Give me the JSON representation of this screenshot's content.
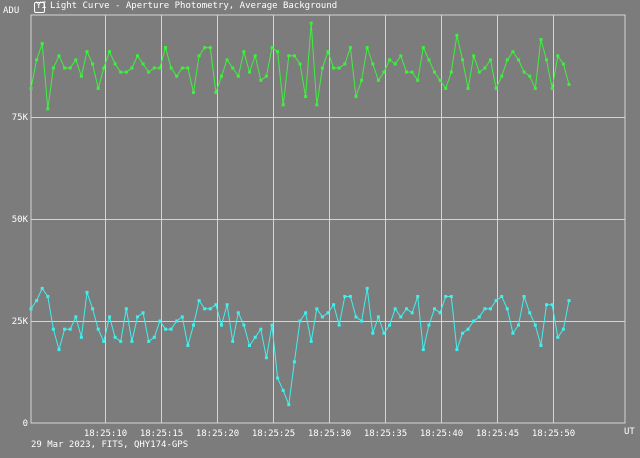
{
  "window": {
    "icon": "app-window-icon",
    "icon_glyph": "YI",
    "title": "Light Curve - Aperture Photometry, Average Background"
  },
  "footer": {
    "caption": "29 Mar 2023, FITS, QHY174-GPS"
  },
  "colors": {
    "background": "#7c7c7c",
    "grid": "#d4d4d4",
    "text": "#ffffff",
    "series_green": "#3ef03e",
    "series_cyan": "#3ff0ee"
  },
  "chart_data": {
    "type": "line",
    "ylabel": "ADU",
    "xlabel": "UT",
    "yticks": [
      {
        "value": 0,
        "label": "0"
      },
      {
        "value": 25000,
        "label": "25K"
      },
      {
        "value": 50000,
        "label": "50K"
      },
      {
        "value": 75000,
        "label": "75K"
      }
    ],
    "xticks": [
      "18:25:10",
      "18:25:15",
      "18:25:20",
      "18:25:25",
      "18:25:30",
      "18:25:35",
      "18:25:40",
      "18:25:45",
      "18:25:50"
    ],
    "xtick_seconds": [
      10,
      15,
      20,
      25,
      30,
      35,
      40,
      45,
      50
    ],
    "xlim": [
      3.4,
      56.4
    ],
    "ylim": [
      0,
      100000
    ],
    "grid": true,
    "x_step": 0.5,
    "series": [
      {
        "color": "#3ef03e",
        "x_start": 3.4,
        "values": [
          82000,
          89000,
          93000,
          77000,
          87000,
          90000,
          87000,
          87000,
          89000,
          85000,
          91000,
          88000,
          82000,
          87000,
          91000,
          88000,
          86000,
          86000,
          87000,
          90000,
          88000,
          86000,
          87000,
          87000,
          92000,
          87000,
          85000,
          87000,
          87000,
          81000,
          90000,
          92000,
          92000,
          81000,
          85000,
          89000,
          87000,
          85000,
          91000,
          86000,
          90000,
          84000,
          85000,
          92000,
          91000,
          78000,
          90000,
          90000,
          88000,
          80000,
          98000,
          78000,
          87000,
          91000,
          87000,
          87000,
          88000,
          92000,
          80000,
          84000,
          92000,
          88000,
          84000,
          86000,
          89000,
          88000,
          90000,
          86000,
          86000,
          84000,
          92000,
          89000,
          86000,
          84000,
          82000,
          86000,
          95000,
          89000,
          82000,
          90000,
          86000,
          87000,
          89000,
          82000,
          85000,
          89000,
          91000,
          89000,
          86000,
          85000,
          82000,
          94000,
          89000,
          82000,
          90000,
          88000,
          83000
        ]
      },
      {
        "color": "#3ff0ee",
        "x_start": 3.4,
        "values": [
          28000,
          30000,
          33000,
          31000,
          23000,
          18000,
          23000,
          23000,
          26000,
          21000,
          32000,
          28000,
          23000,
          20000,
          26000,
          21000,
          20000,
          28000,
          20000,
          26000,
          27000,
          20000,
          21000,
          25000,
          23000,
          23000,
          25000,
          26000,
          19000,
          24000,
          30000,
          28000,
          28000,
          29000,
          24000,
          29000,
          20000,
          27000,
          24000,
          19000,
          21000,
          23000,
          16000,
          24000,
          11000,
          8000,
          4500,
          15000,
          25000,
          27000,
          20000,
          28000,
          26000,
          27000,
          29000,
          24000,
          31000,
          31000,
          26000,
          25000,
          33000,
          22000,
          26000,
          22000,
          24000,
          28000,
          26000,
          28000,
          27000,
          31000,
          18000,
          24000,
          28000,
          27000,
          31000,
          31000,
          18000,
          22000,
          23000,
          25000,
          26000,
          28000,
          28000,
          30000,
          31000,
          28000,
          22000,
          24000,
          31000,
          27000,
          24000,
          19000,
          29000,
          29000,
          21000,
          23000,
          30000
        ]
      }
    ]
  }
}
